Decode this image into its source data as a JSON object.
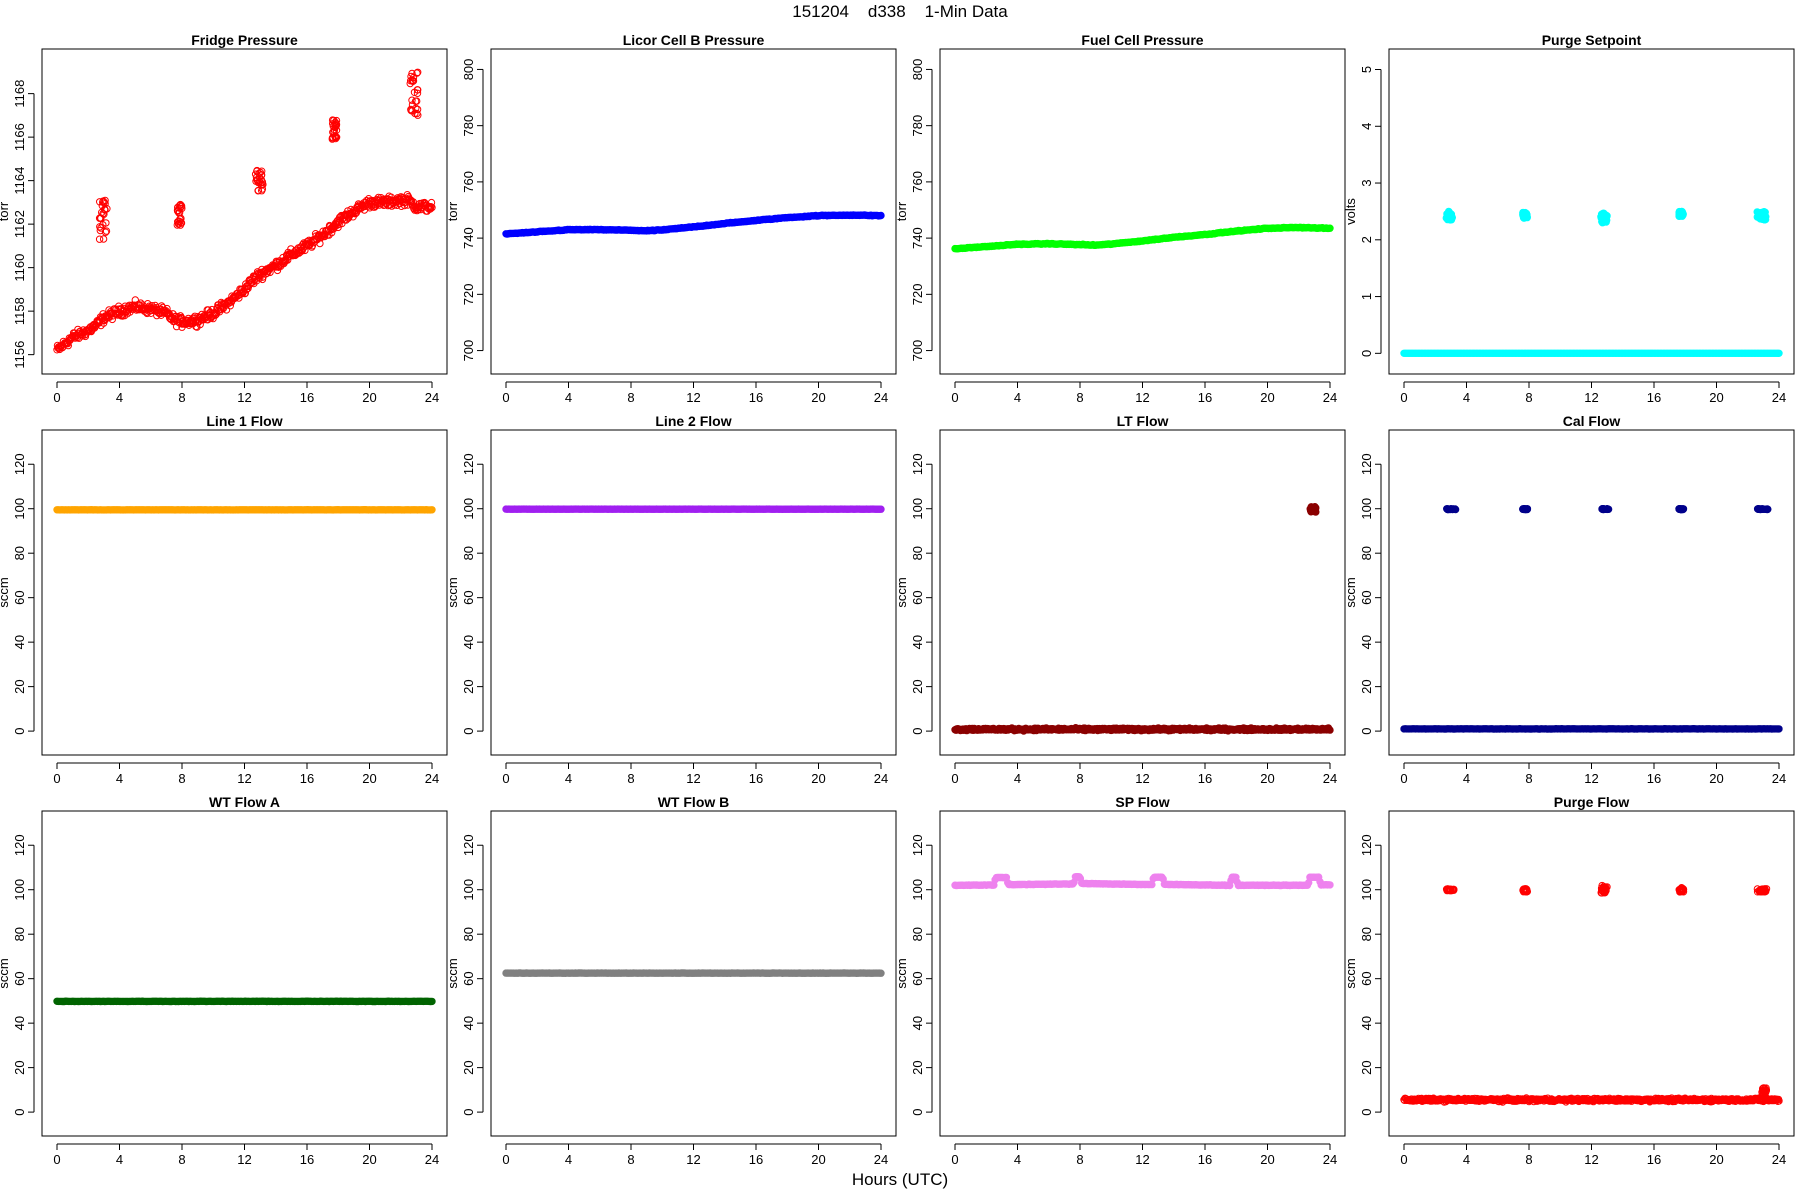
{
  "page": {
    "title": "151204    d338    1-Min Data",
    "x_caption": "Hours (UTC)"
  },
  "chart_data": [
    {
      "type": "scatter",
      "title": "Fridge Pressure",
      "ylabel": "torr",
      "xlim": [
        0,
        24
      ],
      "ylim": [
        1155.8,
        1169.5
      ],
      "xticks": [
        0,
        4,
        8,
        12,
        16,
        20,
        24
      ],
      "yticks": [
        1156,
        1158,
        1160,
        1162,
        1164,
        1166,
        1168
      ],
      "color": "#ff0000",
      "marker": "open-circle",
      "series": [
        {
          "kind": "trend",
          "noise": 0.35,
          "x": [
            0,
            1,
            2,
            2.6,
            3,
            4,
            5,
            6,
            7,
            7.5,
            8,
            9,
            10,
            11,
            12,
            12.5,
            13,
            14,
            15,
            16,
            17,
            18,
            19,
            20,
            21,
            22,
            22.5,
            23,
            24
          ],
          "y": [
            1156.2,
            1156.8,
            1157.1,
            1157.4,
            1157.7,
            1158.0,
            1158.2,
            1158.1,
            1157.9,
            1157.6,
            1157.5,
            1157.6,
            1157.9,
            1158.4,
            1159.0,
            1159.4,
            1159.7,
            1160.1,
            1160.6,
            1161.0,
            1161.5,
            1162.1,
            1162.6,
            1163.0,
            1163.0,
            1163.1,
            1163.1,
            1162.8,
            1162.8
          ]
        },
        {
          "kind": "cluster",
          "x": [
            2.7,
            3.2
          ],
          "y": [
            1161.3,
            1163.1
          ]
        },
        {
          "kind": "cluster",
          "x": [
            7.7,
            8.0
          ],
          "y": [
            1161.9,
            1162.9
          ]
        },
        {
          "kind": "cluster",
          "x": [
            12.7,
            13.2
          ],
          "y": [
            1163.5,
            1164.5
          ]
        },
        {
          "kind": "cluster",
          "x": [
            17.6,
            17.9
          ],
          "y": [
            1165.9,
            1166.8
          ]
        },
        {
          "kind": "cluster",
          "x": [
            22.6,
            23.1
          ],
          "y": [
            1167.0,
            1169.0
          ]
        }
      ]
    },
    {
      "type": "scatter",
      "title": "Licor Cell B Pressure",
      "ylabel": "torr",
      "xlim": [
        0,
        24
      ],
      "ylim": [
        697,
        803
      ],
      "xticks": [
        0,
        4,
        8,
        12,
        16,
        20,
        24
      ],
      "yticks": [
        700,
        720,
        740,
        760,
        780,
        800
      ],
      "color": "#0000ff",
      "marker": "filled",
      "series": [
        {
          "kind": "trend",
          "noise": 0.2,
          "x": [
            0,
            2,
            4,
            6,
            8,
            9,
            10,
            12,
            14,
            16,
            18,
            20,
            22,
            24
          ],
          "y": [
            741.5,
            742.2,
            743.0,
            743.0,
            742.8,
            742.6,
            742.9,
            744.0,
            745.2,
            746.3,
            747.3,
            748.0,
            748.2,
            748.0
          ]
        }
      ]
    },
    {
      "type": "scatter",
      "title": "Fuel Cell Pressure",
      "ylabel": "torr",
      "xlim": [
        0,
        24
      ],
      "ylim": [
        697,
        803
      ],
      "xticks": [
        0,
        4,
        8,
        12,
        16,
        20,
        24
      ],
      "yticks": [
        700,
        720,
        740,
        760,
        780,
        800
      ],
      "color": "#00ff00",
      "marker": "filled",
      "series": [
        {
          "kind": "trend",
          "noise": 0.2,
          "x": [
            0,
            2,
            4,
            6,
            8,
            9,
            10,
            12,
            14,
            16,
            18,
            20,
            22,
            24
          ],
          "y": [
            736.2,
            737.0,
            737.8,
            738.0,
            737.7,
            737.5,
            737.9,
            739.0,
            740.3,
            741.3,
            742.5,
            743.5,
            743.8,
            743.5
          ]
        }
      ]
    },
    {
      "type": "scatter",
      "title": "Purge Setpoint",
      "ylabel": "volts",
      "xlim": [
        0,
        24
      ],
      "ylim": [
        -0.1,
        5.15
      ],
      "xticks": [
        0,
        4,
        8,
        12,
        16,
        20,
        24
      ],
      "yticks": [
        0,
        1,
        2,
        3,
        4,
        5
      ],
      "color": "#00ffff",
      "marker": "filled",
      "series": [
        {
          "kind": "flat",
          "x": [
            0,
            24
          ],
          "y": 0.0,
          "noise": 0
        },
        {
          "kind": "cluster",
          "x": [
            2.7,
            3.1
          ],
          "y": [
            2.35,
            2.5
          ]
        },
        {
          "kind": "cluster",
          "x": [
            7.6,
            7.9
          ],
          "y": [
            2.38,
            2.48
          ]
        },
        {
          "kind": "cluster",
          "x": [
            12.6,
            13.0
          ],
          "y": [
            2.3,
            2.48
          ]
        },
        {
          "kind": "cluster",
          "x": [
            17.6,
            17.9
          ],
          "y": [
            2.4,
            2.5
          ]
        },
        {
          "kind": "cluster",
          "x": [
            22.6,
            23.2
          ],
          "y": [
            2.35,
            2.5
          ]
        }
      ]
    },
    {
      "type": "scatter",
      "title": "Line 1 Flow",
      "ylabel": "sccm",
      "xlim": [
        0,
        24
      ],
      "ylim": [
        -4,
        130
      ],
      "xticks": [
        0,
        4,
        8,
        12,
        16,
        20,
        24
      ],
      "yticks": [
        0,
        20,
        40,
        60,
        80,
        100,
        120
      ],
      "color": "#ffa500",
      "marker": "filled",
      "series": [
        {
          "kind": "flat",
          "x": [
            0,
            24
          ],
          "y": 99.5,
          "noise": 0.05
        }
      ]
    },
    {
      "type": "scatter",
      "title": "Line 2 Flow",
      "ylabel": "sccm",
      "xlim": [
        0,
        24
      ],
      "ylim": [
        -4,
        130
      ],
      "xticks": [
        0,
        4,
        8,
        12,
        16,
        20,
        24
      ],
      "yticks": [
        0,
        20,
        40,
        60,
        80,
        100,
        120
      ],
      "color": "#a020f0",
      "marker": "filled",
      "series": [
        {
          "kind": "flat",
          "x": [
            0,
            24
          ],
          "y": 99.8,
          "noise": 0.05
        }
      ]
    },
    {
      "type": "scatter",
      "title": "LT Flow",
      "ylabel": "sccm",
      "xlim": [
        0,
        24
      ],
      "ylim": [
        -4,
        130
      ],
      "xticks": [
        0,
        4,
        8,
        12,
        16,
        20,
        24
      ],
      "yticks": [
        0,
        20,
        40,
        60,
        80,
        100,
        120
      ],
      "color": "#8b0000",
      "marker": "filled",
      "series": [
        {
          "kind": "flat",
          "x": [
            0,
            24
          ],
          "y": 0.8,
          "noise": 0.8
        },
        {
          "kind": "cluster",
          "x": [
            22.7,
            23.1
          ],
          "y": [
            98.5,
            101
          ]
        }
      ]
    },
    {
      "type": "scatter",
      "title": "Cal Flow",
      "ylabel": "sccm",
      "xlim": [
        0,
        24
      ],
      "ylim": [
        -4,
        130
      ],
      "xticks": [
        0,
        4,
        8,
        12,
        16,
        20,
        24
      ],
      "yticks": [
        0,
        20,
        40,
        60,
        80,
        100,
        120
      ],
      "color": "#00008b",
      "marker": "filled",
      "series": [
        {
          "kind": "flat",
          "x": [
            0,
            24
          ],
          "y": 1.0,
          "noise": 0.1
        },
        {
          "kind": "cluster",
          "x": [
            2.7,
            3.3
          ],
          "y": [
            99.6,
            100
          ]
        },
        {
          "kind": "cluster",
          "x": [
            7.6,
            7.9
          ],
          "y": [
            99.6,
            100
          ]
        },
        {
          "kind": "cluster",
          "x": [
            12.6,
            13.1
          ],
          "y": [
            99.6,
            100
          ]
        },
        {
          "kind": "cluster",
          "x": [
            17.6,
            17.9
          ],
          "y": [
            99.6,
            100
          ]
        },
        {
          "kind": "cluster",
          "x": [
            22.6,
            23.3
          ],
          "y": [
            99.6,
            100
          ]
        }
      ]
    },
    {
      "type": "scatter",
      "title": "WT Flow A",
      "ylabel": "sccm",
      "xlim": [
        0,
        24
      ],
      "ylim": [
        -4,
        130
      ],
      "xticks": [
        0,
        4,
        8,
        12,
        16,
        20,
        24
      ],
      "yticks": [
        0,
        20,
        40,
        60,
        80,
        100,
        120
      ],
      "color": "#006400",
      "marker": "filled",
      "series": [
        {
          "kind": "flat",
          "x": [
            0,
            24
          ],
          "y": 49.8,
          "noise": 0.1
        }
      ]
    },
    {
      "type": "scatter",
      "title": "WT Flow B",
      "ylabel": "sccm",
      "xlim": [
        0,
        24
      ],
      "ylim": [
        -4,
        130
      ],
      "xticks": [
        0,
        4,
        8,
        12,
        16,
        20,
        24
      ],
      "yticks": [
        0,
        20,
        40,
        60,
        80,
        100,
        120
      ],
      "color": "#808080",
      "marker": "filled",
      "series": [
        {
          "kind": "flat",
          "x": [
            0,
            24
          ],
          "y": 62.5,
          "noise": 0.1
        }
      ]
    },
    {
      "type": "scatter",
      "title": "SP Flow",
      "ylabel": "sccm",
      "xlim": [
        0,
        24
      ],
      "ylim": [
        -4,
        130
      ],
      "xticks": [
        0,
        4,
        8,
        12,
        16,
        20,
        24
      ],
      "yticks": [
        0,
        20,
        40,
        60,
        80,
        100,
        120
      ],
      "color": "#ee82ee",
      "marker": "filled",
      "series": [
        {
          "kind": "trend",
          "noise": 0.15,
          "x": [
            0,
            2.5,
            2.6,
            3.3,
            3.4,
            7.6,
            7.7,
            8.0,
            8.1,
            12.6,
            12.7,
            13.3,
            13.4,
            17.6,
            17.7,
            18.0,
            18.1,
            22.6,
            22.7,
            23.3,
            23.4,
            24
          ],
          "y": [
            102,
            102.1,
            105.5,
            105.5,
            102.3,
            102.6,
            105.8,
            105.8,
            102.8,
            102.3,
            105.6,
            105.6,
            102.4,
            102,
            105.6,
            105.6,
            102,
            102,
            105.6,
            105.6,
            102.2,
            102.2
          ]
        }
      ]
    },
    {
      "type": "scatter",
      "title": "Purge Flow",
      "ylabel": "sccm",
      "xlim": [
        0,
        24
      ],
      "ylim": [
        -4,
        130
      ],
      "xticks": [
        0,
        4,
        8,
        12,
        16,
        20,
        24
      ],
      "yticks": [
        0,
        20,
        40,
        60,
        80,
        100,
        120
      ],
      "color": "#ff0000",
      "marker": "open-circle",
      "series": [
        {
          "kind": "flat",
          "x": [
            0,
            24
          ],
          "y": 5.5,
          "noise": 1.0
        },
        {
          "kind": "cluster",
          "x": [
            2.7,
            3.2
          ],
          "y": [
            99.5,
            100.5
          ]
        },
        {
          "kind": "cluster",
          "x": [
            7.6,
            7.9
          ],
          "y": [
            99.0,
            100.5
          ]
        },
        {
          "kind": "cluster",
          "x": [
            12.6,
            13.0
          ],
          "y": [
            98.5,
            102
          ]
        },
        {
          "kind": "cluster",
          "x": [
            17.6,
            17.9
          ],
          "y": [
            99.0,
            101
          ]
        },
        {
          "kind": "cluster",
          "x": [
            22.6,
            23.2
          ],
          "y": [
            99.0,
            100.5
          ]
        },
        {
          "kind": "cluster",
          "x": [
            22.9,
            23.2
          ],
          "y": [
            6,
            11
          ]
        }
      ]
    }
  ]
}
